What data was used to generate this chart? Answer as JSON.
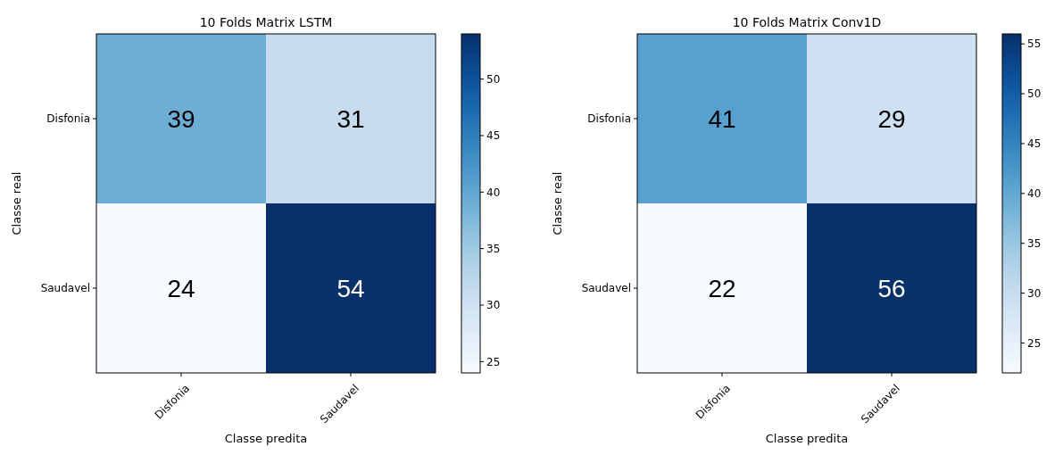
{
  "chart_data": [
    {
      "type": "heatmap",
      "title": "10 Folds Matrix LSTM",
      "xlabel": "Classe predita",
      "ylabel": "Classe real",
      "categories": [
        "Disfonia",
        "Saudavel"
      ],
      "y_categories": [
        "Disfonia",
        "Saudavel"
      ],
      "cells": [
        [
          39,
          31
        ],
        [
          24,
          54
        ]
      ],
      "data_labels": true,
      "clim": [
        24,
        54
      ],
      "cticks": [
        25,
        30,
        35,
        40,
        45,
        50
      ]
    },
    {
      "type": "heatmap",
      "title": "10 Folds Matrix Conv1D",
      "xlabel": "Classe predita",
      "ylabel": "Classe real",
      "categories": [
        "Disfonia",
        "Saudavel"
      ],
      "y_categories": [
        "Disfonia",
        "Saudavel"
      ],
      "cells": [
        [
          41,
          29
        ],
        [
          22,
          56
        ]
      ],
      "data_labels": true,
      "clim": [
        22,
        56
      ],
      "cticks": [
        25,
        30,
        35,
        40,
        45,
        50,
        55
      ]
    }
  ]
}
